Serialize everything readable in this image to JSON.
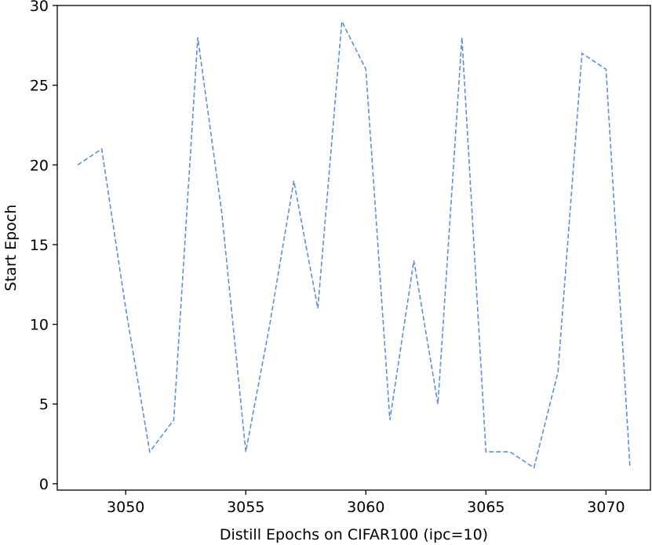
{
  "chart_data": {
    "type": "line",
    "title": "",
    "xlabel": "Distill Epochs on CIFAR100 (ipc=10)",
    "ylabel": "Start Epoch",
    "xlim": [
      3047.15,
      3071.85
    ],
    "ylim": [
      -0.4,
      30.0
    ],
    "xticks": [
      3050,
      3055,
      3060,
      3065,
      3070
    ],
    "yticks": [
      0,
      5,
      10,
      15,
      20,
      25,
      30
    ],
    "grid": false,
    "legend": "none",
    "series_color": "#5b8fe0",
    "line_style": "dashed",
    "x": [
      3048,
      3049,
      3050,
      3051,
      3052,
      3053,
      3054,
      3055,
      3056,
      3057,
      3058,
      3059,
      3060,
      3061,
      3062,
      3063,
      3064,
      3065,
      3066,
      3067,
      3068,
      3069,
      3070,
      3071
    ],
    "series": [
      {
        "values": [
          20,
          21,
          11,
          2,
          4,
          28,
          17,
          2,
          10,
          19,
          11,
          29,
          26,
          4,
          14,
          5,
          28,
          2,
          2,
          1,
          7,
          27,
          26,
          1
        ]
      }
    ]
  }
}
